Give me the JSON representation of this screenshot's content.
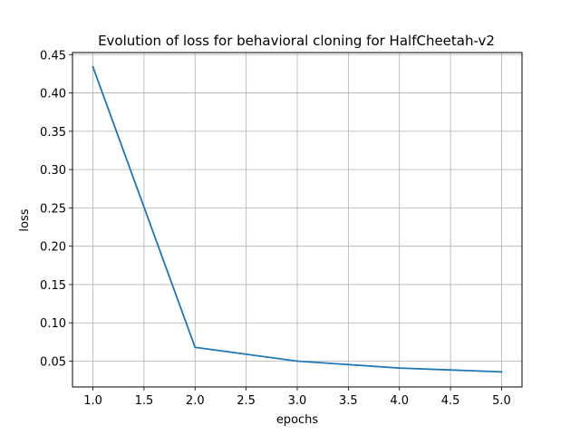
{
  "chart_data": {
    "type": "line",
    "title": "Evolution of loss for behavioral cloning for HalfCheetah-v2",
    "xlabel": "epochs",
    "ylabel": "loss",
    "x": [
      1,
      2,
      3,
      4,
      5
    ],
    "series": [
      {
        "values": [
          0.434,
          0.068,
          0.05,
          0.041,
          0.036
        ],
        "color": "#1f77b4"
      }
    ],
    "xlim": [
      0.8,
      5.2
    ],
    "ylim": [
      0.0163,
      0.4527
    ],
    "xticks": [
      1.0,
      1.5,
      2.0,
      2.5,
      3.0,
      3.5,
      4.0,
      4.5,
      5.0
    ],
    "xtick_labels": [
      "1.0",
      "1.5",
      "2.0",
      "2.5",
      "3.0",
      "3.5",
      "4.0",
      "4.5",
      "5.0"
    ],
    "yticks": [
      0.05,
      0.1,
      0.15,
      0.2,
      0.25,
      0.3,
      0.35,
      0.4,
      0.45
    ],
    "ytick_labels": [
      "0.05",
      "0.10",
      "0.15",
      "0.20",
      "0.25",
      "0.30",
      "0.35",
      "0.40",
      "0.45"
    ],
    "grid": true,
    "grid_color": "#b0b0b0"
  }
}
